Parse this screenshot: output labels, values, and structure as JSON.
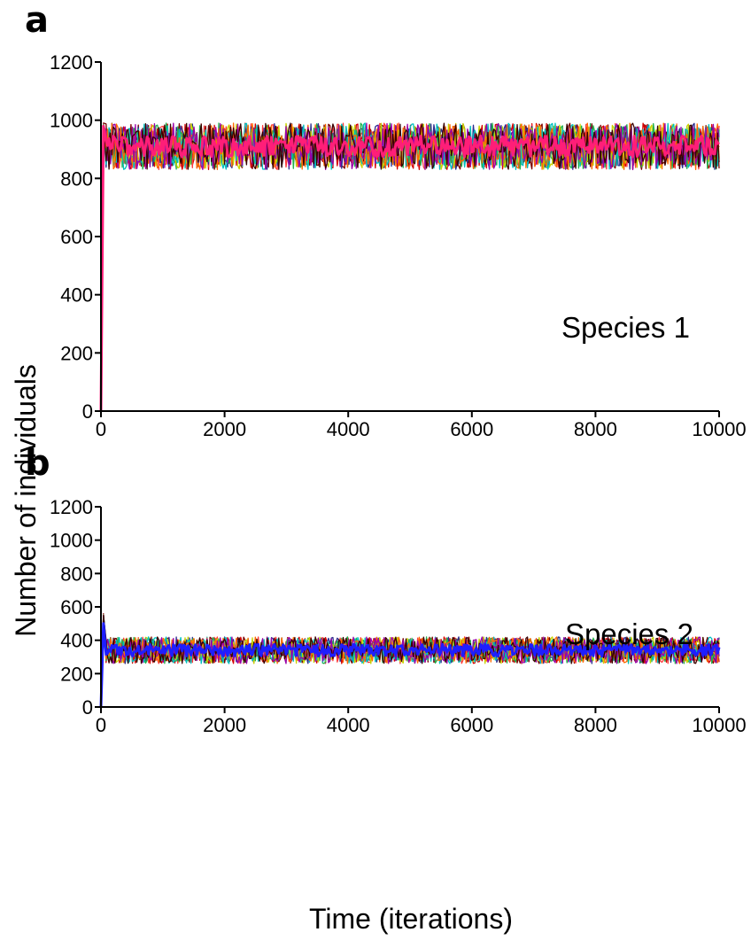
{
  "figure": {
    "ylabel": "Number of individuals",
    "xlabel": "Time (iterations)"
  },
  "chart_data": [
    {
      "type": "line",
      "panel_label": "a",
      "annotation": "Species 1",
      "xlim": [
        0,
        10000
      ],
      "ylim": [
        0,
        1200
      ],
      "xticks": [
        0,
        2000,
        4000,
        6000,
        8000,
        10000
      ],
      "yticks": [
        0,
        200,
        400,
        600,
        800,
        1000,
        1200
      ],
      "start_value": 0,
      "initial_peak": 1040,
      "band": {
        "mean": 910,
        "low": 830,
        "high": 990
      },
      "series_colors": [
        "#7a0000",
        "#d40000",
        "#ff3b3b",
        "#2e2e8f",
        "#22b14c",
        "#c8d400",
        "#00bfbf",
        "#ff6a00",
        "#9900aa",
        "#3a0000"
      ],
      "mean_color": "#ff1e78"
    },
    {
      "type": "line",
      "panel_label": "b",
      "annotation": "Species 2",
      "xlim": [
        0,
        10000
      ],
      "ylim": [
        0,
        1200
      ],
      "xticks": [
        0,
        2000,
        4000,
        6000,
        8000,
        10000
      ],
      "yticks": [
        0,
        200,
        400,
        600,
        800,
        1000,
        1200
      ],
      "start_value": 0,
      "initial_peak": 560,
      "band": {
        "mean": 340,
        "low": 260,
        "high": 420
      },
      "series_colors": [
        "#7a0000",
        "#d40000",
        "#ff3b3b",
        "#2e2e8f",
        "#22b14c",
        "#c8d400",
        "#00bfbf",
        "#ff6a00",
        "#9900aa",
        "#3a0000"
      ],
      "mean_color": "#1e1eff"
    }
  ]
}
